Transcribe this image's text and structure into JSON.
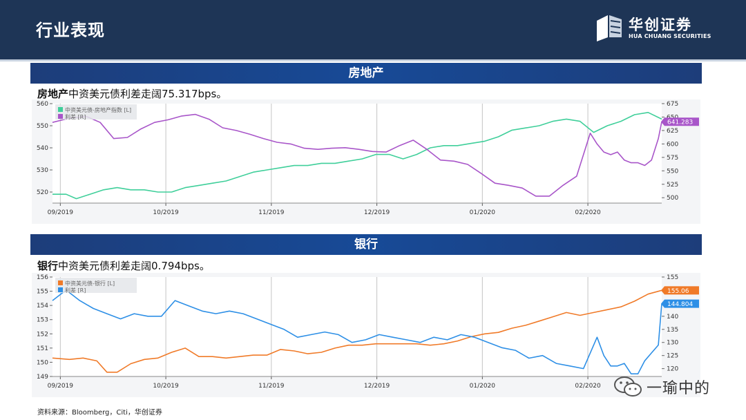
{
  "header": {
    "title": "行业表现",
    "logo_cn": "华创证券",
    "logo_en": "HUA CHUANG SECURITIES"
  },
  "sections": [
    {
      "bar_title": "房地产",
      "desc_bold": "房地产",
      "desc_rest": "中资美元债利差走阔75.317bps。"
    },
    {
      "bar_title": "银行",
      "desc_bold": "银行",
      "desc_rest": "中资美元债利差走阔0.794bps。"
    }
  ],
  "source": "资料来源：Bloomberg，Citi，华创证券",
  "watermark": "一瑜中的",
  "colors": {
    "header_bg": "#1e3556",
    "section_bar": "#174a97",
    "green": "#3fcf9a",
    "purple": "#a855c9",
    "orange": "#f07a28",
    "blue": "#2d8fe6"
  },
  "chart_data": [
    {
      "type": "line",
      "x_tick_labels": [
        "09/2019",
        "10/2019",
        "11/2019",
        "12/2019",
        "01/2020",
        "02/2020"
      ],
      "x_tick_positions": [
        0.3,
        31.3,
        62.3,
        93.3,
        124.3,
        155.3
      ],
      "xlim": [
        -2,
        177
      ],
      "left_axis": {
        "ylim": [
          515,
          560
        ],
        "ticks": [
          520,
          530,
          540,
          550,
          560
        ]
      },
      "right_axis": {
        "ylim": [
          490,
          675
        ],
        "ticks": [
          500,
          525,
          550,
          575,
          600,
          625,
          650,
          675
        ]
      },
      "series": [
        {
          "name": "中资美元债-房地产指数 [L]",
          "axis": "left",
          "color": "#3fcf9a",
          "x": [
            -2,
            2,
            5,
            9,
            13,
            17,
            21,
            25,
            29,
            33,
            37,
            41,
            45,
            49,
            53,
            57,
            61,
            65,
            69,
            73,
            77,
            81,
            85,
            89,
            93,
            97,
            101,
            105,
            109,
            113,
            117,
            121,
            125,
            129,
            133,
            137,
            141,
            145,
            149,
            153,
            157,
            161,
            165,
            169,
            173,
            177
          ],
          "y": [
            519,
            519,
            517,
            519,
            521,
            522,
            521,
            521,
            520,
            520,
            522,
            523,
            524,
            525,
            527,
            529,
            530,
            531,
            532,
            532,
            533,
            533,
            534,
            535,
            537,
            537,
            535,
            537,
            540,
            541,
            541,
            542,
            543,
            545,
            548,
            549,
            550,
            552,
            553,
            552,
            547,
            550,
            552,
            555,
            556,
            553
          ]
        },
        {
          "name": "利差 [R]",
          "axis": "right",
          "color": "#a855c9",
          "x": [
            -2,
            3,
            8,
            12,
            16,
            20,
            24,
            28,
            32,
            36,
            40,
            44,
            48,
            52,
            56,
            60,
            64,
            68,
            72,
            76,
            80,
            84,
            88,
            92,
            96,
            100,
            104,
            108,
            112,
            116,
            120,
            124,
            128,
            132,
            136,
            140,
            144,
            148,
            152,
            156,
            158,
            160,
            162,
            164,
            166,
            168,
            170,
            172,
            174,
            176,
            177
          ],
          "y": [
            640,
            648,
            651,
            640,
            610,
            612,
            628,
            640,
            645,
            652,
            655,
            646,
            630,
            625,
            618,
            610,
            603,
            600,
            592,
            590,
            592,
            593,
            590,
            586,
            585,
            597,
            607,
            590,
            570,
            568,
            562,
            545,
            527,
            523,
            518,
            503,
            503,
            523,
            540,
            620,
            600,
            585,
            580,
            585,
            570,
            565,
            565,
            560,
            570,
            610,
            641.283
          ]
        }
      ],
      "badges": [
        {
          "axis": "right",
          "value": 641.283,
          "label": "641.283",
          "color": "#a855c9"
        }
      ]
    },
    {
      "type": "line",
      "x_tick_labels": [
        "09/2019",
        "10/2019",
        "11/2019",
        "12/2019",
        "01/2020",
        "02/2020"
      ],
      "x_tick_positions": [
        0.3,
        31.3,
        62.3,
        93.3,
        124.3,
        155.3
      ],
      "xlim": [
        -2,
        177
      ],
      "left_axis": {
        "ylim": [
          149,
          156
        ],
        "ticks": [
          149,
          150,
          151,
          152,
          153,
          154,
          155,
          156
        ]
      },
      "right_axis": {
        "ylim": [
          117,
          155
        ],
        "ticks": [
          120,
          125,
          130,
          135,
          140,
          145,
          150,
          155
        ]
      },
      "series": [
        {
          "name": "中资美元债-银行 [L]",
          "axis": "left",
          "color": "#f07a28",
          "x": [
            -2,
            3,
            7,
            11,
            14,
            17,
            21,
            25,
            29,
            33,
            37,
            41,
            45,
            49,
            53,
            57,
            61,
            65,
            69,
            73,
            77,
            81,
            85,
            89,
            93,
            97,
            101,
            105,
            109,
            113,
            117,
            121,
            125,
            129,
            133,
            137,
            141,
            145,
            149,
            153,
            157,
            161,
            165,
            169,
            173,
            177
          ],
          "y": [
            150.3,
            150.2,
            150.3,
            150.1,
            149.3,
            149.3,
            149.9,
            150.2,
            150.3,
            150.7,
            151.0,
            150.4,
            150.4,
            150.3,
            150.4,
            150.5,
            150.5,
            150.9,
            150.8,
            150.6,
            150.7,
            151.0,
            151.2,
            151.2,
            151.3,
            151.3,
            151.3,
            151.3,
            151.2,
            151.3,
            151.5,
            151.8,
            152.0,
            152.1,
            152.4,
            152.6,
            152.9,
            153.2,
            153.5,
            153.3,
            153.5,
            153.7,
            153.9,
            154.3,
            154.8,
            155.06
          ]
        },
        {
          "name": "利差 [R]",
          "axis": "right",
          "color": "#2d8fe6",
          "x": [
            -2,
            2,
            6,
            10,
            14,
            18,
            22,
            26,
            30,
            34,
            38,
            42,
            46,
            50,
            54,
            58,
            62,
            66,
            70,
            74,
            78,
            82,
            86,
            90,
            94,
            98,
            102,
            106,
            110,
            114,
            118,
            122,
            126,
            130,
            134,
            138,
            142,
            146,
            150,
            154,
            158,
            160,
            162,
            164,
            166,
            168,
            170,
            172,
            174,
            176,
            177
          ],
          "y": [
            146,
            150,
            146,
            143,
            141,
            139,
            141,
            140,
            140,
            146,
            144,
            142,
            141,
            142,
            141,
            139,
            137,
            135,
            132,
            133,
            134,
            133,
            130,
            131,
            133,
            132,
            131,
            130,
            132,
            131,
            133,
            132,
            130,
            128,
            127,
            124,
            125,
            122,
            121,
            120,
            132,
            125,
            121,
            121,
            122,
            118,
            118,
            123,
            126,
            129,
            144.804
          ]
        }
      ],
      "badges": [
        {
          "axis": "left",
          "value": 155.06,
          "label": "155.06",
          "color": "#f07a28"
        },
        {
          "axis": "right",
          "value": 144.804,
          "label": "144.804",
          "color": "#2d8fe6"
        }
      ]
    }
  ]
}
